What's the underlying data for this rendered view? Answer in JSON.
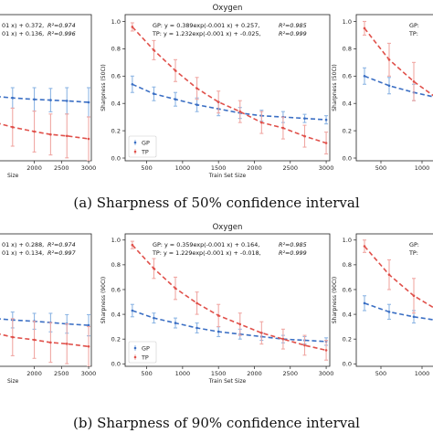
{
  "colors": {
    "gp": "#3b6fc4",
    "tp": "#e0504a",
    "gp_err": "#8eb6e4",
    "tp_err": "#f0a8a4"
  },
  "captions": {
    "a": "(a) Sharpness of 50% confidence interval",
    "b": "(b) Sharpness of 90% confidence interval"
  },
  "chart_data": [
    {
      "id": "a-left",
      "type": "line",
      "title": "",
      "xlabel": "Size",
      "ylabel": "",
      "xlim": [
        1200,
        3050
      ],
      "ylim": [
        0.0,
        1.0
      ],
      "xticks": [
        2000,
        2500,
        3000
      ],
      "yticks": [],
      "equations": [
        {
          "series": "GP",
          "text": "01 x) + 0.372,",
          "r2_label": "R²=0.974"
        },
        {
          "series": "TP",
          "text": "01 x) + 0.136,",
          "r2_label": "R²=0.996"
        }
      ],
      "series": [
        {
          "name": "GP",
          "x": [
            1300,
            1600,
            2000,
            2300,
            2600,
            3000
          ],
          "y": [
            0.44,
            0.43,
            0.42,
            0.415,
            0.41,
            0.4
          ],
          "err": [
            0.06,
            0.07,
            0.08,
            0.08,
            0.09,
            0.1
          ]
        },
        {
          "name": "TP",
          "x": [
            1300,
            1600,
            2000,
            2300,
            2600,
            3000
          ],
          "y": [
            0.26,
            0.23,
            0.2,
            0.18,
            0.17,
            0.15
          ],
          "err": [
            0.12,
            0.13,
            0.14,
            0.14,
            0.15,
            0.15
          ]
        }
      ]
    },
    {
      "id": "a-middle",
      "type": "line",
      "title": "Oxygen",
      "xlabel": "Train Set Size",
      "ylabel": "Sharpness (50CI)",
      "xlim": [
        200,
        3050
      ],
      "ylim": [
        -0.02,
        1.05
      ],
      "xticks": [
        500,
        1000,
        1500,
        2000,
        2500,
        3000
      ],
      "yticks": [
        0.0,
        0.2,
        0.4,
        0.6,
        0.8,
        1.0
      ],
      "equations": [
        {
          "series": "GP",
          "text": "GP:  y = 0.389exp(-0.001 x) + 0.257,",
          "r2_label": "R²=0.985"
        },
        {
          "series": "TP",
          "text": "TP:  y = 1.232exp(-0.001 x) + -0.025,",
          "r2_label": "R²=0.999"
        }
      ],
      "legend_position": "lower-left",
      "series": [
        {
          "name": "GP",
          "x": [
            300,
            600,
            900,
            1200,
            1500,
            1800,
            2100,
            2400,
            2700,
            3000
          ],
          "y": [
            0.54,
            0.47,
            0.43,
            0.39,
            0.36,
            0.33,
            0.31,
            0.3,
            0.29,
            0.28
          ],
          "err": [
            0.06,
            0.05,
            0.05,
            0.05,
            0.05,
            0.04,
            0.04,
            0.04,
            0.03,
            0.03
          ]
        },
        {
          "name": "TP",
          "x": [
            300,
            600,
            900,
            1200,
            1500,
            1800,
            2100,
            2400,
            2700,
            3000
          ],
          "y": [
            0.96,
            0.79,
            0.64,
            0.51,
            0.41,
            0.34,
            0.26,
            0.22,
            0.16,
            0.11
          ],
          "err": [
            0.03,
            0.07,
            0.08,
            0.08,
            0.08,
            0.08,
            0.08,
            0.08,
            0.08,
            0.08
          ]
        }
      ]
    },
    {
      "id": "a-right",
      "type": "line",
      "title": "",
      "xlabel": "",
      "ylabel": "Sharpness (50CI)",
      "xlim": [
        200,
        1200
      ],
      "ylim": [
        -0.02,
        1.05
      ],
      "xticks": [
        500,
        1000
      ],
      "yticks": [
        0.0,
        0.2,
        0.4,
        0.6,
        0.8,
        1.0
      ],
      "equations": [
        {
          "series": "GP",
          "text": "GP:",
          "r2_label": ""
        },
        {
          "series": "TP",
          "text": "TP:",
          "r2_label": ""
        }
      ],
      "series": [
        {
          "name": "GP",
          "x": [
            300,
            600,
            900,
            1200
          ],
          "y": [
            0.6,
            0.53,
            0.48,
            0.44
          ],
          "err": [
            0.06,
            0.06,
            0.06,
            0.05
          ]
        },
        {
          "name": "TP",
          "x": [
            300,
            600,
            900,
            1200
          ],
          "y": [
            0.95,
            0.72,
            0.56,
            0.43
          ],
          "err": [
            0.05,
            0.12,
            0.14,
            0.14
          ]
        }
      ]
    },
    {
      "id": "b-left",
      "type": "line",
      "title": "",
      "xlabel": "Size",
      "ylabel": "",
      "xlim": [
        1200,
        3050
      ],
      "ylim": [
        0.0,
        1.0
      ],
      "xticks": [
        2000,
        2500,
        3000
      ],
      "yticks": [],
      "equations": [
        {
          "series": "GP",
          "text": "01 x) + 0.288,",
          "r2_label": "R²=0.974"
        },
        {
          "series": "TP",
          "text": "01 x) + 0.134,",
          "r2_label": "R²=0.997"
        }
      ],
      "series": [
        {
          "name": "GP",
          "x": [
            1300,
            1600,
            2000,
            2300,
            2600,
            3000
          ],
          "y": [
            0.36,
            0.35,
            0.34,
            0.33,
            0.32,
            0.31
          ],
          "err": [
            0.05,
            0.06,
            0.06,
            0.07,
            0.07,
            0.08
          ]
        },
        {
          "name": "TP",
          "x": [
            1300,
            1600,
            2000,
            2300,
            2600,
            3000
          ],
          "y": [
            0.25,
            0.22,
            0.2,
            0.18,
            0.17,
            0.15
          ],
          "err": [
            0.12,
            0.14,
            0.14,
            0.15,
            0.15,
            0.15
          ]
        }
      ]
    },
    {
      "id": "b-middle",
      "type": "line",
      "title": "Oxygen",
      "xlabel": "Train Set Size",
      "ylabel": "Sharpness (90CI)",
      "xlim": [
        200,
        3050
      ],
      "ylim": [
        -0.02,
        1.05
      ],
      "xticks": [
        500,
        1000,
        1500,
        2000,
        2500,
        3000
      ],
      "yticks": [
        0.0,
        0.2,
        0.4,
        0.6,
        0.8,
        1.0
      ],
      "equations": [
        {
          "series": "GP",
          "text": "GP:  y = 0.359exp(-0.001 x) + 0.164,",
          "r2_label": "R²=0.985"
        },
        {
          "series": "TP",
          "text": "TP:  y = 1.229exp(-0.001 x) + -0.018,",
          "r2_label": "R²=0.999"
        }
      ],
      "legend_position": "lower-left",
      "series": [
        {
          "name": "GP",
          "x": [
            300,
            600,
            900,
            1200,
            1500,
            1800,
            2100,
            2400,
            2700,
            3000
          ],
          "y": [
            0.43,
            0.37,
            0.33,
            0.29,
            0.26,
            0.24,
            0.22,
            0.2,
            0.19,
            0.18
          ],
          "err": [
            0.05,
            0.04,
            0.04,
            0.04,
            0.04,
            0.04,
            0.03,
            0.03,
            0.03,
            0.03
          ]
        },
        {
          "name": "TP",
          "x": [
            300,
            600,
            900,
            1200,
            1500,
            1800,
            2100,
            2400,
            2700,
            3000
          ],
          "y": [
            0.96,
            0.77,
            0.61,
            0.49,
            0.39,
            0.32,
            0.25,
            0.2,
            0.15,
            0.11
          ],
          "err": [
            0.03,
            0.08,
            0.09,
            0.09,
            0.09,
            0.09,
            0.09,
            0.08,
            0.08,
            0.08
          ]
        }
      ]
    },
    {
      "id": "b-right",
      "type": "line",
      "title": "",
      "xlabel": "",
      "ylabel": "Sharpness (90CI)",
      "xlim": [
        200,
        1200
      ],
      "ylim": [
        -0.02,
        1.05
      ],
      "xticks": [
        500,
        1000
      ],
      "yticks": [
        0.0,
        0.2,
        0.4,
        0.6,
        0.8,
        1.0
      ],
      "equations": [
        {
          "series": "GP",
          "text": "GP:",
          "r2_label": ""
        },
        {
          "series": "TP",
          "text": "TP:",
          "r2_label": ""
        }
      ],
      "series": [
        {
          "name": "GP",
          "x": [
            300,
            600,
            900,
            1200
          ],
          "y": [
            0.49,
            0.42,
            0.38,
            0.35
          ],
          "err": [
            0.06,
            0.06,
            0.05,
            0.05
          ]
        },
        {
          "name": "TP",
          "x": [
            300,
            600,
            900,
            1200
          ],
          "y": [
            0.95,
            0.72,
            0.55,
            0.43
          ],
          "err": [
            0.05,
            0.12,
            0.14,
            0.14
          ]
        }
      ]
    }
  ]
}
